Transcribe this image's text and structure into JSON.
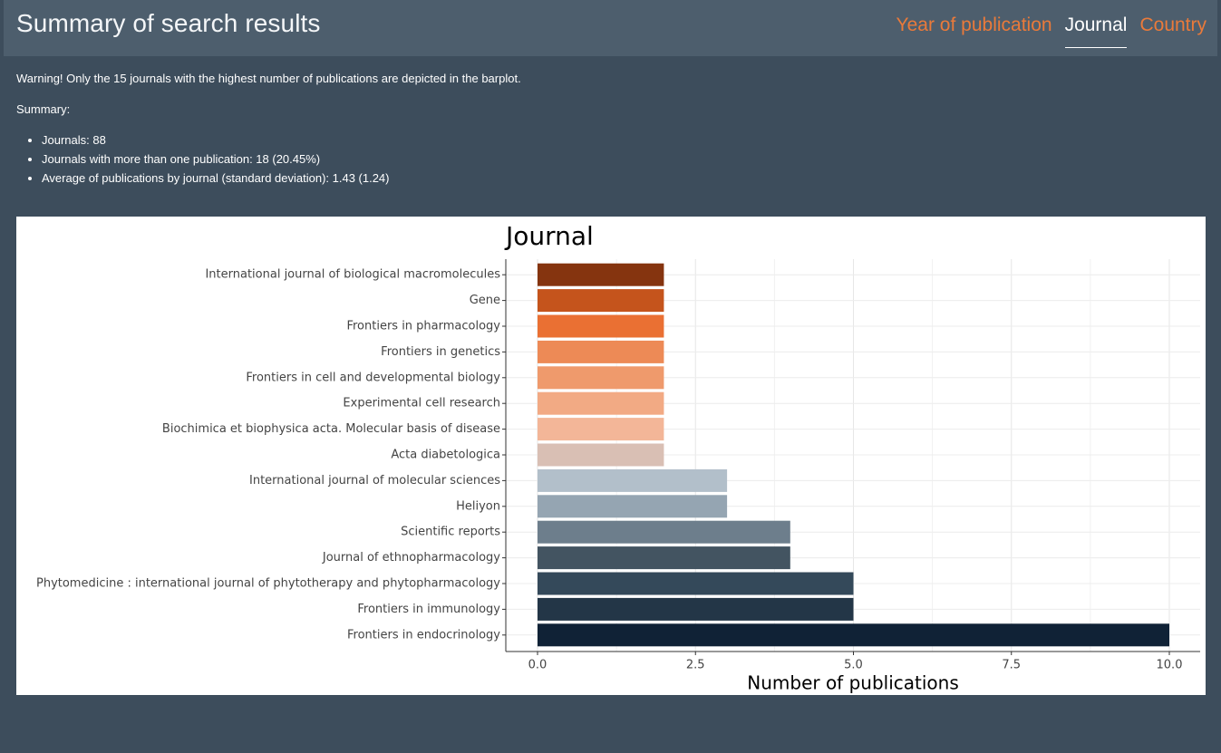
{
  "header": {
    "title": "Summary of search results",
    "tabs": [
      {
        "label": "Year of publication",
        "active": false
      },
      {
        "label": "Journal",
        "active": true
      },
      {
        "label": "Country",
        "active": false
      }
    ]
  },
  "content": {
    "warning": "Warning! Only the 15 journals with the highest number of publications are depicted in the barplot.",
    "summary_label": "Summary:",
    "summary_items": [
      "Journals: 88",
      "Journals with more than one publication: 18 (20.45%)",
      "Average of publications by journal (standard deviation): 1.43 (1.24)"
    ]
  },
  "colors": {
    "page_bg": "#3d4d5c",
    "header_bg": "#4d5e6d",
    "accent": "#ea7a3a"
  },
  "chart_data": {
    "type": "bar",
    "orientation": "horizontal",
    "title": "Journal",
    "xlabel": "Number of publications",
    "ylabel": "",
    "xlim": [
      0,
      10
    ],
    "xticks": [
      "0.0",
      "2.5",
      "5.0",
      "7.5",
      "10.0"
    ],
    "grid": true,
    "categories": [
      "International journal of biological macromolecules",
      "Gene",
      "Frontiers in pharmacology",
      "Frontiers in genetics",
      "Frontiers in cell and developmental biology",
      "Experimental cell research",
      "Biochimica et biophysica acta. Molecular basis of disease",
      "Acta diabetologica",
      "International journal of molecular sciences",
      "Heliyon",
      "Scientific reports",
      "Journal of ethnopharmacology",
      "Phytomedicine : international journal of phytotherapy and phytopharmacology",
      "Frontiers in immunology",
      "Frontiers in endocrinology"
    ],
    "values": [
      2,
      2,
      2,
      2,
      2,
      2,
      2,
      2,
      3,
      3,
      4,
      4,
      5,
      5,
      10
    ],
    "colors": [
      "#85340f",
      "#c5541c",
      "#ea7033",
      "#ed8a56",
      "#ef9a6c",
      "#f2aa84",
      "#f3b698",
      "#d9bfb4",
      "#b2bfca",
      "#95a5b2",
      "#6d7e8c",
      "#435461",
      "#34495a",
      "#233647",
      "#102236"
    ]
  }
}
